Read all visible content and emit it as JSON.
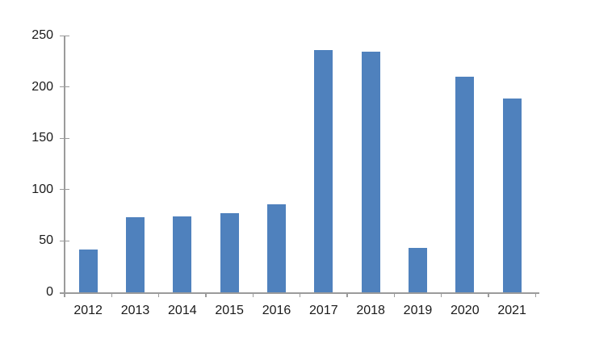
{
  "chart_data": {
    "type": "bar",
    "title": "",
    "xlabel": "",
    "ylabel": "",
    "categories": [
      "2012",
      "2013",
      "2014",
      "2015",
      "2016",
      "2017",
      "2018",
      "2019",
      "2020",
      "2021"
    ],
    "values": [
      42,
      73,
      74,
      77,
      86,
      236,
      234,
      43,
      210,
      189
    ],
    "ylim": [
      0,
      250
    ],
    "yticks": [
      0,
      50,
      100,
      150,
      200,
      250
    ],
    "grid": false,
    "legend": false,
    "bar_color": "#4f81bd",
    "axis_color": "#9b9b9b",
    "text_color": "#1a1a1a",
    "background": "#ffffff"
  }
}
